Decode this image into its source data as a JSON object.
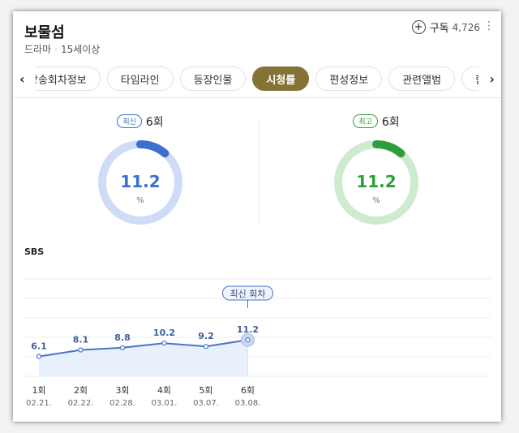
{
  "header": {
    "title": "보물섬",
    "genre": "드라마",
    "age_rating": "15세이상",
    "subscribe_label": "구독",
    "subscribe_count": "4,726"
  },
  "tabs": [
    "방송회차정보",
    "타임라인",
    "등장인물",
    "시청률",
    "편성정보",
    "관련앨범",
    "함께 볼만한"
  ],
  "active_tab": "시청률",
  "ratings": {
    "latest": {
      "badge": "최신",
      "episode": "6회",
      "value": "11.2",
      "unit": "%",
      "color": "#3b6fd0",
      "track": "#cfdcf6",
      "fraction": 0.112
    },
    "highest": {
      "badge": "최고",
      "episode": "6회",
      "value": "11.2",
      "unit": "%",
      "color": "#2e9e3a",
      "track": "#cdebcf",
      "fraction": 0.112
    }
  },
  "chart_data": {
    "type": "line",
    "title": "SBS",
    "categories": [
      "1회",
      "2회",
      "3회",
      "4회",
      "5회",
      "6회"
    ],
    "dates": [
      "02.21.",
      "02.22.",
      "02.28.",
      "03.01.",
      "03.07.",
      "03.08."
    ],
    "values": [
      6.1,
      8.1,
      8.8,
      10.2,
      9.2,
      11.2
    ],
    "ylim": [
      0,
      30
    ],
    "annotation": "최신 회차",
    "grid": true,
    "line_color": "#4a73c8",
    "fill_color": "#e8f0fc"
  }
}
